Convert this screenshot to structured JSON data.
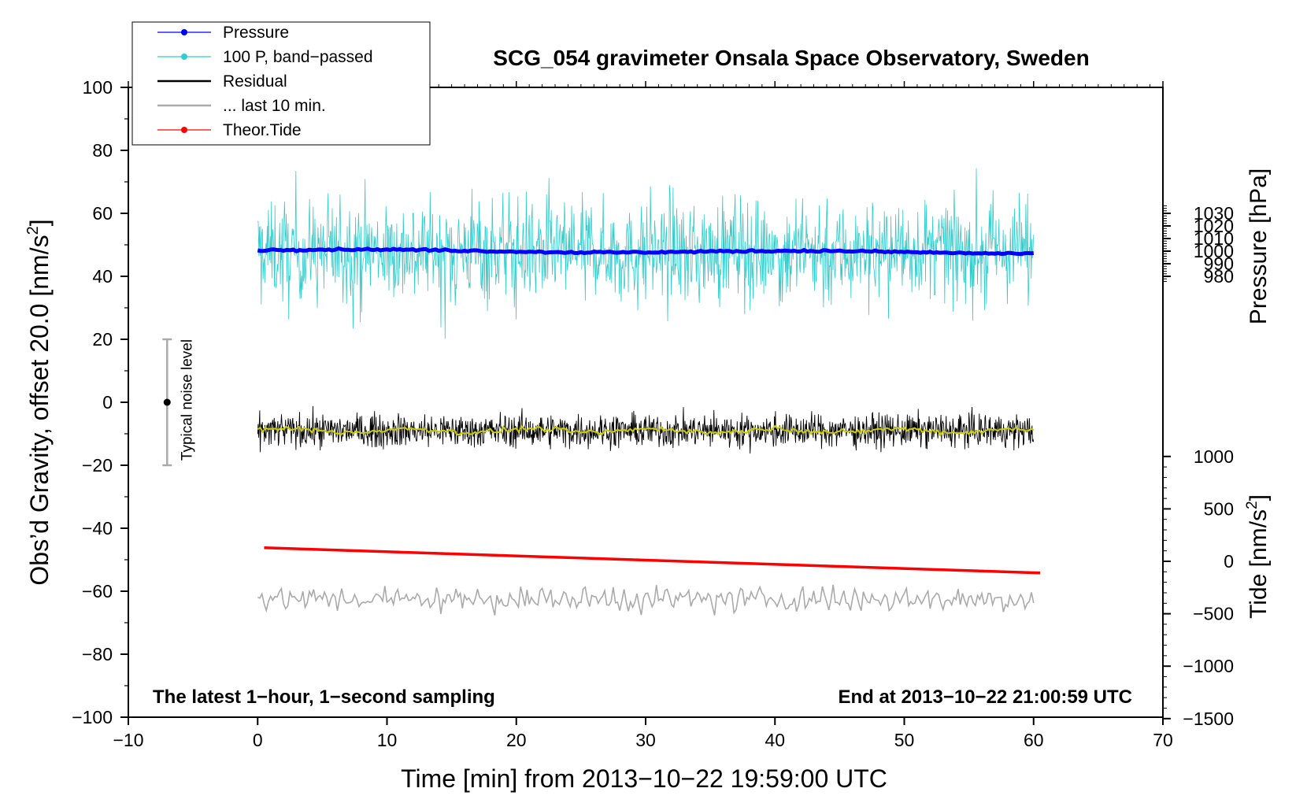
{
  "chart_data": {
    "type": "line",
    "title": "SCG_054 gravimeter Onsala Space Observatory, Sweden",
    "xlabel": "Time [min] from 2013−10−22 19:59:00 UTC",
    "ylabel_left": "Obs’d Gravity, offset 20.0 [nm/s",
    "ylabel_left_sup": "2",
    "ylabel_left_tail": "]",
    "ylabel_right_pressure": "Pressure [hPa]",
    "ylabel_right_tide": "Tide [nm/s",
    "ylabel_right_tide_sup": "2",
    "ylabel_right_tide_tail": "]",
    "xlim": [
      -10,
      70
    ],
    "ylim": [
      -100,
      100
    ],
    "x_ticks": [
      {
        "value": -10,
        "label": "−10"
      },
      {
        "value": 0,
        "label": "0"
      },
      {
        "value": 10,
        "label": "10"
      },
      {
        "value": 20,
        "label": "20"
      },
      {
        "value": 30,
        "label": "30"
      },
      {
        "value": 40,
        "label": "40"
      },
      {
        "value": 50,
        "label": "50"
      },
      {
        "value": 60,
        "label": "60"
      },
      {
        "value": 70,
        "label": "70"
      }
    ],
    "y_ticks": [
      {
        "value": 100,
        "label": "100"
      },
      {
        "value": 80,
        "label": "80"
      },
      {
        "value": 60,
        "label": "60"
      },
      {
        "value": 40,
        "label": "40"
      },
      {
        "value": 20,
        "label": "20"
      },
      {
        "value": 0,
        "label": "0"
      },
      {
        "value": -20,
        "label": "−20"
      },
      {
        "value": -40,
        "label": "−40"
      },
      {
        "value": -60,
        "label": "−60"
      },
      {
        "value": -80,
        "label": "−80"
      },
      {
        "value": -100,
        "label": "−100"
      }
    ],
    "pressure_axis": {
      "ticks": [
        {
          "value": 1030,
          "label": "1030"
        },
        {
          "value": 1020,
          "label": "1020"
        },
        {
          "value": 1010,
          "label": "1010"
        },
        {
          "value": 1000,
          "label": "1000"
        },
        {
          "value": 990,
          "label": "990"
        },
        {
          "value": 980,
          "label": "980"
        }
      ],
      "gravity_at_1000": 48,
      "gravity_per_hpa": 0.4
    },
    "tide_axis": {
      "ticks": [
        {
          "value": 1000,
          "label": "1000"
        },
        {
          "value": 500,
          "label": "500"
        },
        {
          "value": 0,
          "label": "0"
        },
        {
          "value": -500,
          "label": "−500"
        },
        {
          "value": -1000,
          "label": "−1000"
        },
        {
          "value": -1500,
          "label": "−1500"
        }
      ],
      "gravity_at_0": -50.5,
      "gravity_per_unit": 0.0333
    },
    "legend": {
      "placement": "top-left",
      "entries": [
        {
          "label": "Pressure",
          "color": "#0000ff",
          "marker": true
        },
        {
          "label": "100 P, band−passed",
          "color": "#33cccc",
          "marker": true
        },
        {
          "label": "Residual",
          "color": "#000000",
          "marker": false
        },
        {
          "label": "... last 10 min.",
          "color": "#aaaaaa",
          "marker": false
        },
        {
          "label": "Theor.Tide",
          "color": "#ff0000",
          "marker": true
        }
      ]
    },
    "series": [
      {
        "name": "Pressure",
        "color": "#0000ff",
        "x_range": [
          0,
          60
        ],
        "y_start": 48.3,
        "y_end": 47.5,
        "unit": "offset gravity axis"
      },
      {
        "name": "100 P, band−passed",
        "color": "#33cccc",
        "x_range": [
          0,
          60
        ],
        "y_center": 48,
        "y_min": 15.5,
        "y_max": 75.5
      },
      {
        "name": "Residual",
        "color": "#000000",
        "x_range": [
          0,
          60
        ],
        "y_center": -9,
        "y_min": -19,
        "y_max": 0.5
      },
      {
        "name": "smoothed residual",
        "color": "#cccc00",
        "x_range": [
          0,
          60
        ],
        "y_center": -9
      },
      {
        "name": "... last 10 min.",
        "color": "#aaaaaa",
        "x_range": [
          0,
          60
        ],
        "y_center": -62.5,
        "y_min": -70,
        "y_max": -52
      },
      {
        "name": "Theor.Tide",
        "color": "#ff0000",
        "x": [
          0.5,
          60.5
        ],
        "y": [
          -46.2,
          -54.2
        ]
      }
    ],
    "noise_level": {
      "label": "Typical noise level",
      "x": -7,
      "center": 0,
      "range": [
        -20,
        20
      ]
    },
    "annotations": {
      "left": "The latest 1−hour, 1−second sampling",
      "right": "End at 2013−10−22 21:00:59 UTC"
    },
    "grid": false
  }
}
